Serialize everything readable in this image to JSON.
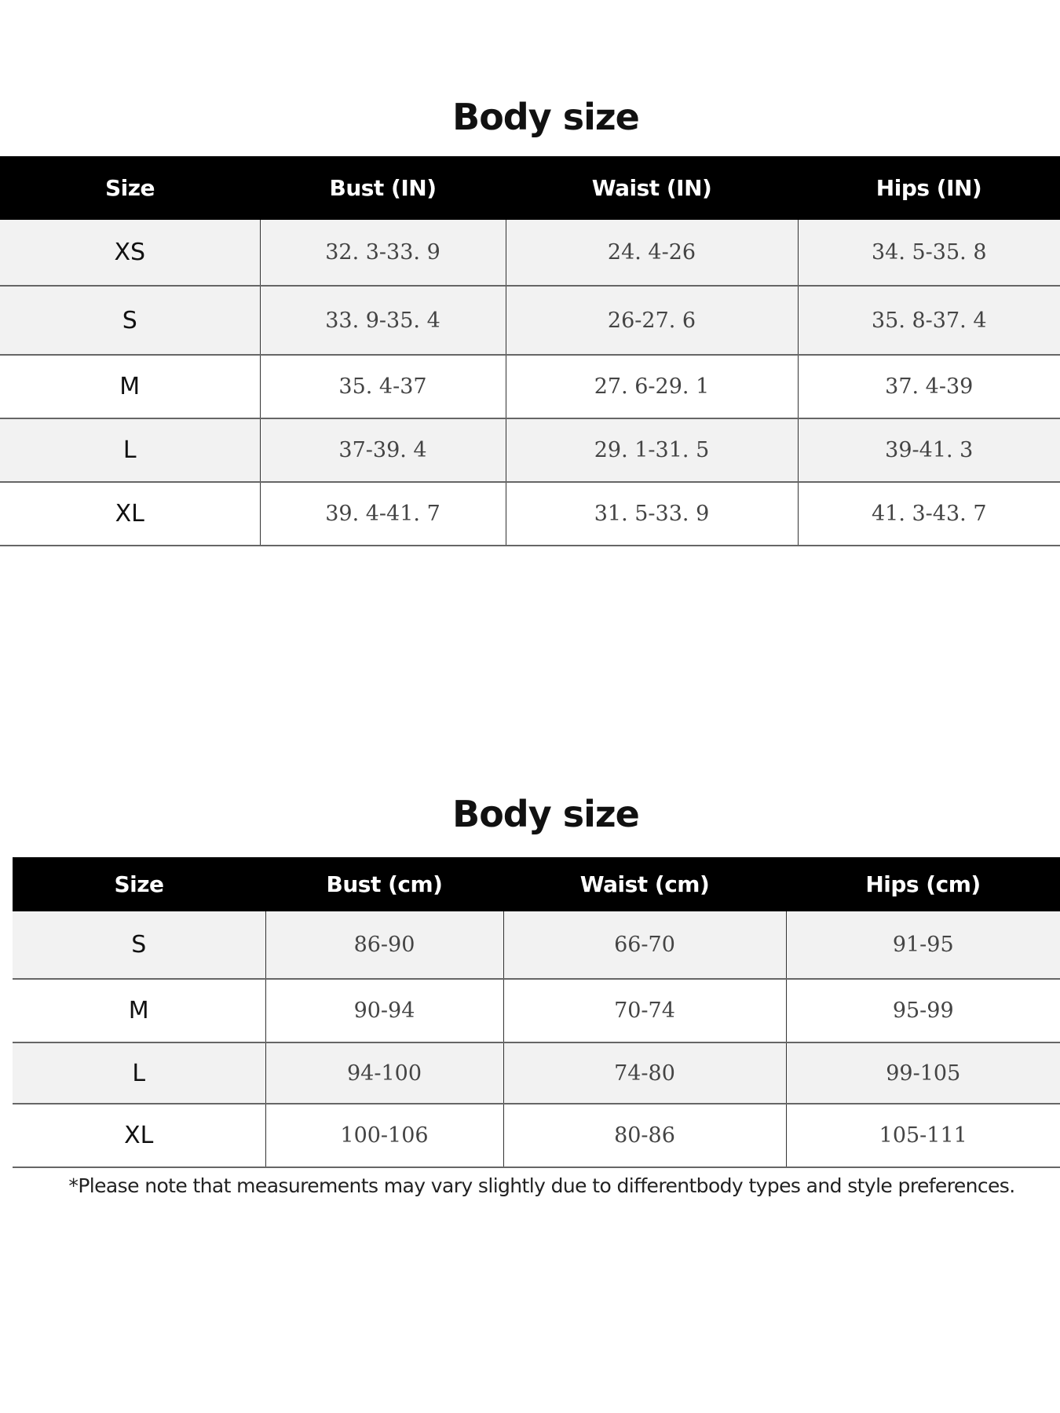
{
  "tables": [
    {
      "title": "Body size",
      "headers": [
        "Size",
        "Bust (IN)",
        "Waist (IN)",
        "Hips (IN)"
      ],
      "rows": [
        [
          "XS",
          "32. 3-33. 9",
          "24. 4-26",
          "34. 5-35. 8"
        ],
        [
          "S",
          "33. 9-35. 4",
          "26-27. 6",
          "35. 8-37. 4"
        ],
        [
          "M",
          "35. 4-37",
          "27. 6-29. 1",
          "37. 4-39"
        ],
        [
          "L",
          "37-39. 4",
          "29. 1-31. 5",
          "39-41. 3"
        ],
        [
          "XL",
          "39. 4-41. 7",
          "31. 5-33. 9",
          "41. 3-43. 7"
        ]
      ]
    },
    {
      "title": "Body size",
      "headers": [
        "Size",
        "Bust (cm)",
        "Waist (cm)",
        "Hips (cm)"
      ],
      "rows": [
        [
          "S",
          "86-90",
          "66-70",
          "91-95"
        ],
        [
          "M",
          "90-94",
          "70-74",
          "95-99"
        ],
        [
          "L",
          "94-100",
          "74-80",
          "99-105"
        ],
        [
          "XL",
          "100-106",
          "80-86",
          "105-111"
        ]
      ]
    }
  ],
  "note": "*Please note that measurements may vary slightly due to differentbody types and style preferences.",
  "colors": {
    "header_bg": "#000000",
    "row_alt": "#f2f2f2"
  }
}
